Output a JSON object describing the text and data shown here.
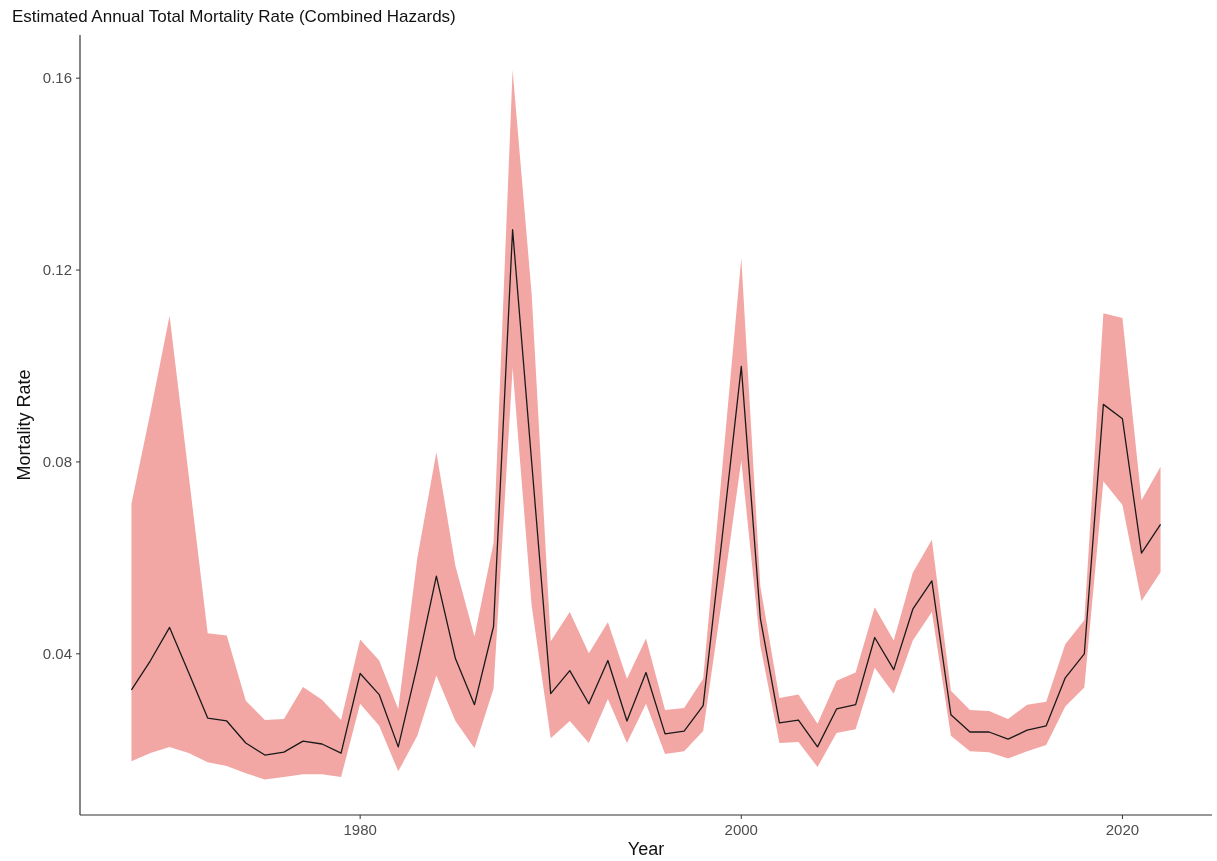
{
  "chart_data": {
    "type": "line",
    "title": "Estimated Annual Total Mortality Rate (Combined Hazards)",
    "xlabel": "Year",
    "ylabel": "Mortality Rate",
    "x": [
      1968,
      1969,
      1970,
      1971,
      1972,
      1973,
      1974,
      1975,
      1976,
      1977,
      1978,
      1979,
      1980,
      1981,
      1982,
      1983,
      1984,
      1985,
      1986,
      1987,
      1988,
      1989,
      1990,
      1991,
      1992,
      1993,
      1994,
      1995,
      1996,
      1997,
      1998,
      1999,
      2000,
      2001,
      2002,
      2003,
      2004,
      2005,
      2006,
      2007,
      2008,
      2009,
      2010,
      2011,
      2012,
      2013,
      2014,
      2015,
      2016,
      2017,
      2018,
      2019,
      2020,
      2021,
      2022
    ],
    "series": [
      {
        "color": "#1a1a1a",
        "values": [
          0.0325,
          0.0386,
          0.0455,
          0.0361,
          0.0266,
          0.026,
          0.0214,
          0.0189,
          0.0195,
          0.0218,
          0.0212,
          0.0193,
          0.0359,
          0.0315,
          0.0206,
          0.0376,
          0.0562,
          0.039,
          0.0294,
          0.0457,
          0.1284,
          0.08,
          0.0317,
          0.0365,
          0.0296,
          0.0386,
          0.026,
          0.0361,
          0.0233,
          0.0239,
          0.0292,
          0.0644,
          0.0999,
          0.0474,
          0.0256,
          0.0262,
          0.0206,
          0.0285,
          0.0294,
          0.0434,
          0.0367,
          0.0493,
          0.0552,
          0.0273,
          0.0237,
          0.0237,
          0.0222,
          0.0241,
          0.025,
          0.035,
          0.04,
          0.092,
          0.089,
          0.061,
          0.067
        ],
        "lower": [
          0.0176,
          0.0193,
          0.0206,
          0.0193,
          0.0174,
          0.0166,
          0.0151,
          0.0138,
          0.0143,
          0.0149,
          0.0149,
          0.0143,
          0.0296,
          0.025,
          0.0155,
          0.0229,
          0.0355,
          0.026,
          0.0203,
          0.0327,
          0.0996,
          0.05,
          0.0224,
          0.026,
          0.0214,
          0.0306,
          0.0214,
          0.0296,
          0.0191,
          0.0197,
          0.0239,
          0.0516,
          0.0803,
          0.0417,
          0.0214,
          0.0216,
          0.0164,
          0.0235,
          0.0243,
          0.0371,
          0.0317,
          0.0428,
          0.0487,
          0.0229,
          0.0197,
          0.0195,
          0.0182,
          0.0197,
          0.021,
          0.029,
          0.033,
          0.076,
          0.071,
          0.051,
          0.057
        ],
        "upper": [
          0.0713,
          0.0904,
          0.1105,
          0.0774,
          0.0443,
          0.0438,
          0.0302,
          0.0262,
          0.0264,
          0.0331,
          0.0304,
          0.0262,
          0.043,
          0.0386,
          0.0285,
          0.06,
          0.082,
          0.0583,
          0.0436,
          0.0631,
          0.1617,
          0.115,
          0.0426,
          0.0487,
          0.0401,
          0.0466,
          0.0348,
          0.0432,
          0.0283,
          0.0287,
          0.0348,
          0.0787,
          0.1225,
          0.0541,
          0.0308,
          0.0315,
          0.0254,
          0.0344,
          0.0361,
          0.0497,
          0.0428,
          0.0569,
          0.0638,
          0.0323,
          0.0283,
          0.0281,
          0.0264,
          0.0294,
          0.03,
          0.042,
          0.047,
          0.111,
          0.11,
          0.072,
          0.079
        ]
      }
    ],
    "xlim": [
      1965.3,
      2024.7
    ],
    "xticks": [
      1980,
      2000,
      2020
    ],
    "ylim": [
      0.0064,
      0.169
    ],
    "yticks": [
      0.04,
      0.08,
      0.12,
      0.16
    ],
    "grid": false,
    "marker": "none",
    "line_style": "solid"
  }
}
